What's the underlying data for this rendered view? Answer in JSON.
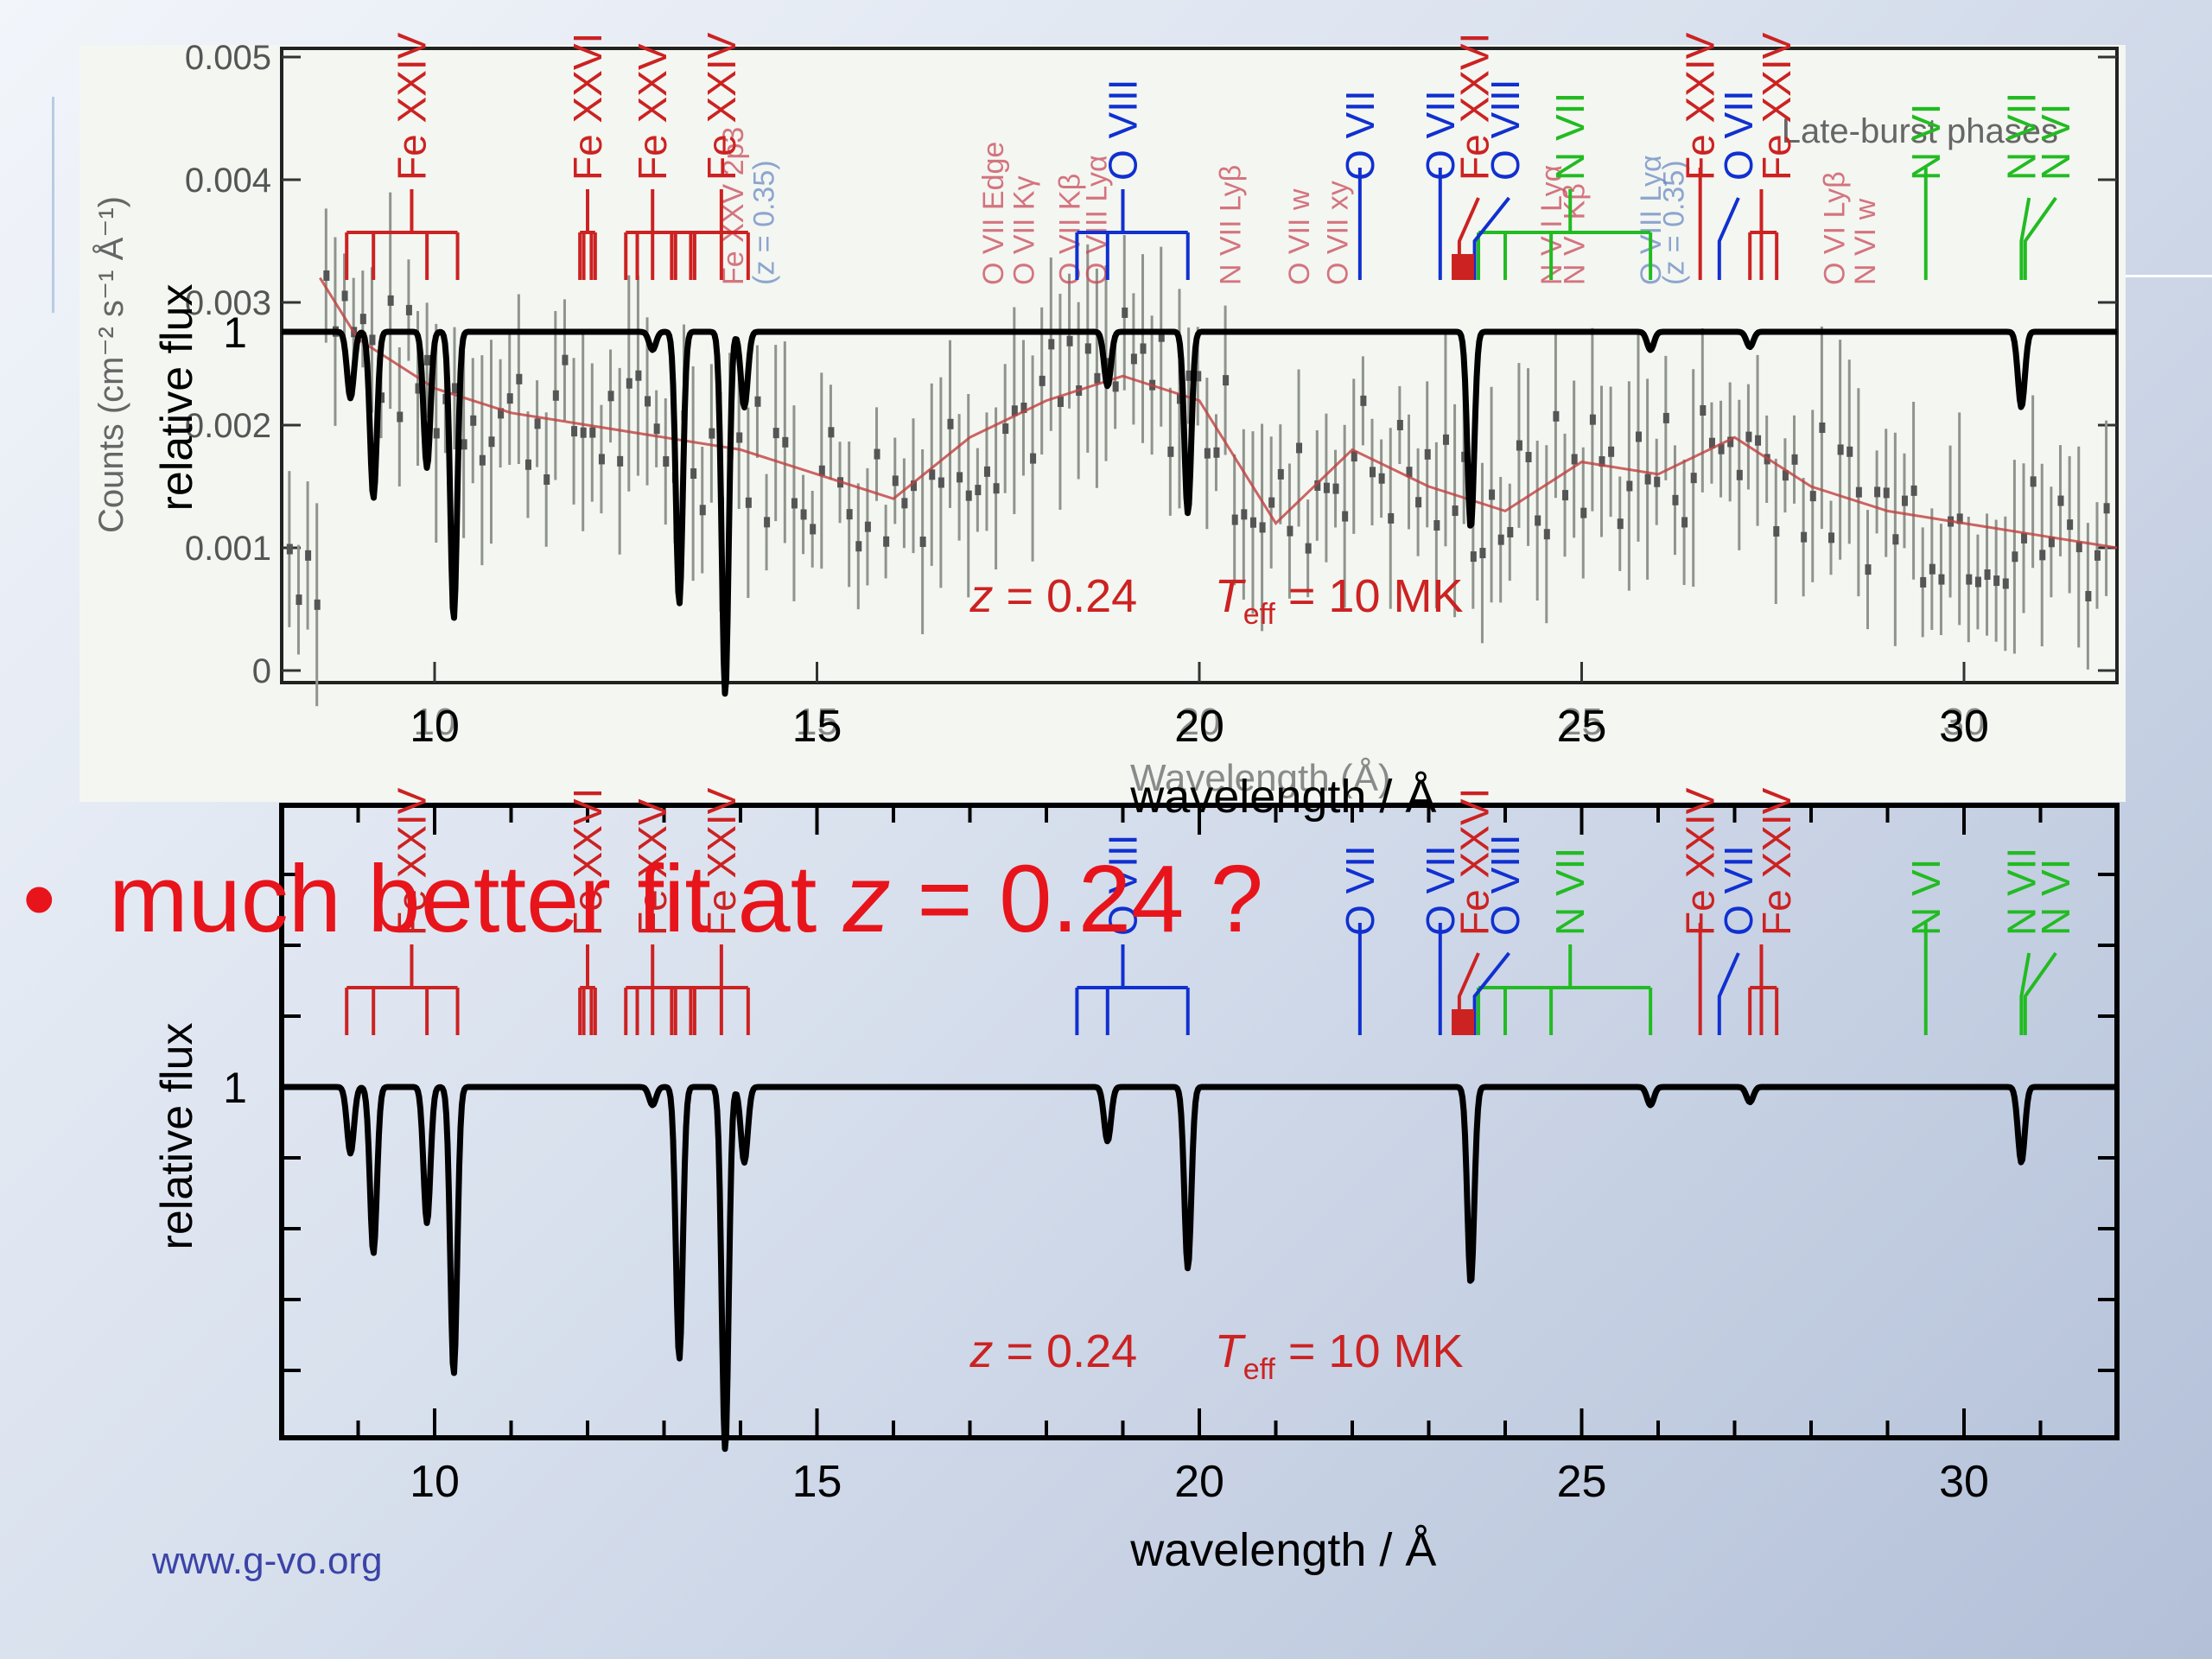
{
  "footer": {
    "url": "www.g-vo.org"
  },
  "bullet": {
    "dot": "•",
    "pre": "much better fit at ",
    "z": "z",
    "post": " = 0.24 ?"
  },
  "colors": {
    "fe": "#cc2222",
    "o": "#1030d0",
    "n": "#22bb22",
    "bullet": "#e8141b",
    "overlay_fe": "#c9495a",
    "overlay_o": "#6a8ac4",
    "model_curve": "#000000",
    "data_fit": "#c04040"
  },
  "chart_data": [
    {
      "type": "line",
      "xlabel": "wavelength / Å",
      "ylabel": "relative flux",
      "xlim": [
        8,
        32
      ],
      "x_ticks": [
        10,
        15,
        20,
        25,
        30
      ],
      "y_ticks": [
        "1"
      ],
      "annotation": {
        "z_label": "z",
        "z_value": " = 0.24",
        "teff_label": "T",
        "teff_sub": "eff",
        "teff_value": " = 10 MK"
      },
      "series": [
        {
          "absorption_lines": [
            {
              "x": 8.9,
              "depth": 0.22
            },
            {
              "x": 9.2,
              "depth": 0.55
            },
            {
              "x": 9.9,
              "depth": 0.45
            },
            {
              "x": 10.25,
              "depth": 0.95
            },
            {
              "x": 12.85,
              "depth": 0.06
            },
            {
              "x": 13.2,
              "depth": 0.9
            },
            {
              "x": 13.8,
              "depth": 1.2
            },
            {
              "x": 14.05,
              "depth": 0.25
            },
            {
              "x": 18.8,
              "depth": 0.18
            },
            {
              "x": 19.85,
              "depth": 0.6
            },
            {
              "x": 23.55,
              "depth": 0.65
            },
            {
              "x": 25.9,
              "depth": 0.06
            },
            {
              "x": 27.2,
              "depth": 0.05
            },
            {
              "x": 30.75,
              "depth": 0.25
            }
          ]
        }
      ],
      "line_labels": [
        {
          "text": "Fe XXIV",
          "x": 9.7,
          "ion": "fe"
        },
        {
          "text": "Fe XXVI",
          "x": 12.0,
          "ion": "fe"
        },
        {
          "text": "Fe XXV",
          "x": 12.85,
          "ion": "fe"
        },
        {
          "text": "Fe XXIV",
          "x": 13.75,
          "ion": "fe"
        },
        {
          "text": "O VIII",
          "x": 19.0,
          "ion": "o"
        },
        {
          "text": "O VII",
          "x": 22.1,
          "ion": "o"
        },
        {
          "text": "O VII",
          "x": 23.15,
          "ion": "o"
        },
        {
          "text": "Fe XXVI",
          "x": 23.6,
          "ion": "fe"
        },
        {
          "text": "O VIII",
          "x": 24.0,
          "ion": "o"
        },
        {
          "text": "N VII",
          "x": 24.85,
          "ion": "n"
        },
        {
          "text": "Fe XXIV",
          "x": 26.55,
          "ion": "fe"
        },
        {
          "text": "O VII",
          "x": 27.05,
          "ion": "o"
        },
        {
          "text": "Fe XXIV",
          "x": 27.55,
          "ion": "fe"
        },
        {
          "text": "N VI",
          "x": 29.5,
          "ion": "n"
        },
        {
          "text": "N VII",
          "x": 30.75,
          "ion": "n"
        },
        {
          "text": "N VI",
          "x": 31.2,
          "ion": "n"
        }
      ]
    },
    {
      "type": "line",
      "xlabel": "Wavelength (Å)",
      "ylabel": "Counts (cm⁻² s⁻¹ Å⁻¹)",
      "ylim": [
        0,
        0.005
      ],
      "y_ticks": [
        "0",
        "0.001",
        "0.002",
        "0.003",
        "0.004",
        "0.005"
      ],
      "x_ticks": [
        "10",
        "15",
        "20",
        "25",
        "30"
      ],
      "legend_text": "Late-burst phases",
      "series": [
        {
          "name": "fit",
          "x": [
            8.5,
            9,
            10,
            11,
            12,
            13,
            14,
            15,
            16,
            17,
            18,
            19,
            20,
            21,
            22,
            23,
            24,
            25,
            26,
            27,
            28,
            29,
            30,
            31,
            32
          ],
          "y": [
            0.0032,
            0.0027,
            0.0023,
            0.0021,
            0.002,
            0.0019,
            0.0018,
            0.0016,
            0.0014,
            0.0019,
            0.0022,
            0.0024,
            0.0022,
            0.0012,
            0.0018,
            0.0015,
            0.0013,
            0.0017,
            0.0016,
            0.0019,
            0.0015,
            0.0013,
            0.0012,
            0.0011,
            0.001
          ]
        }
      ],
      "overlay_labels": [
        {
          "text": "O VII Edge",
          "ion": "fe"
        },
        {
          "text": "O VII Kγ",
          "ion": "fe"
        },
        {
          "text": "O VII Kβ",
          "ion": "fe"
        },
        {
          "text": "O VIII Lyα",
          "ion": "fe"
        },
        {
          "text": "N VII Lyβ",
          "ion": "fe"
        },
        {
          "text": "O VII w",
          "ion": "fe"
        },
        {
          "text": "O VII xy",
          "ion": "fe"
        },
        {
          "text": "Fe XXV 2p3",
          "ion": "fe"
        },
        {
          "text": "(z = 0.35)",
          "ion": "o"
        },
        {
          "text": "O VIII Lyα",
          "ion": "o"
        },
        {
          "text": "(z = 0.35)",
          "ion": "o"
        },
        {
          "text": "N VII Lyα",
          "ion": "fe"
        },
        {
          "text": "N VI Kβ",
          "ion": "fe"
        },
        {
          "text": "N VI w",
          "ion": "fe"
        },
        {
          "text": "O VI Lyβ",
          "ion": "fe"
        }
      ]
    }
  ]
}
